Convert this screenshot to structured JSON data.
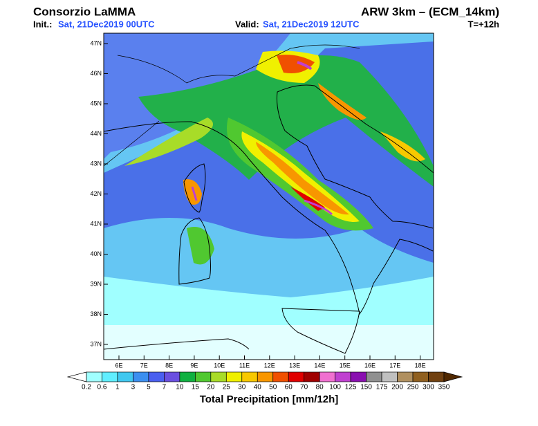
{
  "header": {
    "title": "Consorzio LaMMA",
    "model": "ARW 3km – (ECM_14km)",
    "init_label": "Init.:",
    "init_value": "Sat, 21Dec2019 00UTC",
    "valid_label": "Valid:",
    "valid_value": "Sat, 21Dec2019 12UTC",
    "lead": "T=+12h"
  },
  "map": {
    "lat_ticks": [
      "47N",
      "46N",
      "45N",
      "44N",
      "43N",
      "42N",
      "41N",
      "40N",
      "39N",
      "38N",
      "37N"
    ],
    "lon_ticks": [
      "6E",
      "7E",
      "8E",
      "9E",
      "10E",
      "11E",
      "12E",
      "13E",
      "14E",
      "15E",
      "16E",
      "17E",
      "18E"
    ]
  },
  "colorbar": {
    "title": "Total Precipitation [mm/12h]",
    "labels": [
      "0.2",
      "0.6",
      "1",
      "3",
      "5",
      "7",
      "10",
      "15",
      "20",
      "25",
      "30",
      "40",
      "50",
      "60",
      "70",
      "80",
      "100",
      "125",
      "150",
      "175",
      "200",
      "250",
      "300",
      "350"
    ],
    "colors": [
      "#ffffff",
      "#a0ffff",
      "#60eeff",
      "#40c8f0",
      "#3c8ff0",
      "#4a5ff0",
      "#6a4fe0",
      "#10b040",
      "#50c830",
      "#a8dc28",
      "#f0f000",
      "#f8c800",
      "#f89600",
      "#f05000",
      "#e00000",
      "#a00000",
      "#f070d0",
      "#c040d0",
      "#8a10b0",
      "#909090",
      "#c0c0c0",
      "#b09060",
      "#906020",
      "#704010",
      "#502800"
    ]
  }
}
